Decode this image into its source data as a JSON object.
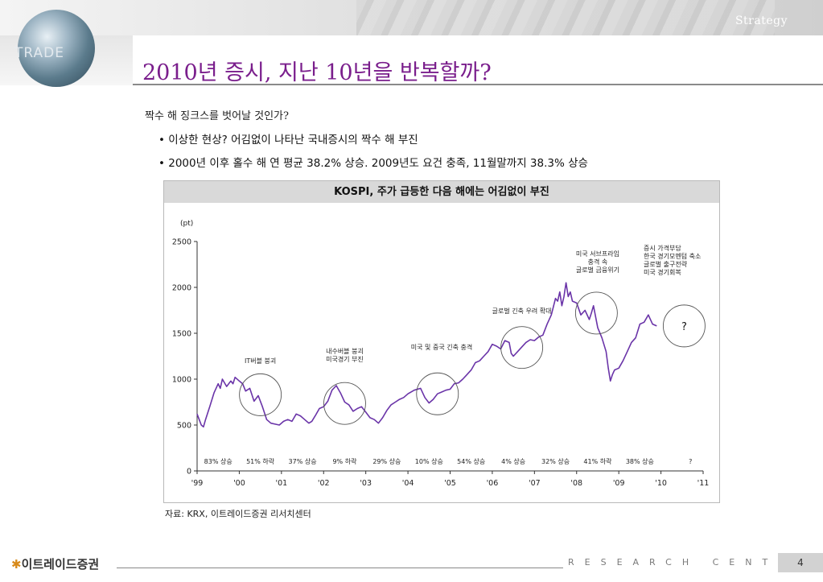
{
  "header": {
    "section": "Strategy",
    "logo_text": "TRADE"
  },
  "slide": {
    "title": "2010년 증시, 지난 10년을 반복할까?",
    "subtitle": "짝수 해 징크스를 벗어날 것인가?",
    "bullets": [
      "• 이상한 현상? 어김없이 나타난 국내증시의 짝수 해 부진",
      "• 2000년 이후 홀수 해 연 평균 38.2% 상승. 2009년도 요건 충족, 11월말까지 38.3% 상승"
    ],
    "source": "자료: KRX, 이트레이드증권 리서치센터"
  },
  "footer": {
    "logo": "이트레이드증권",
    "research": "RESEARCH CENTER",
    "page": "4"
  },
  "colors": {
    "title": "#7a1e8c",
    "line": "#6a34a8",
    "header_bar": "#d9d9d9"
  },
  "chart_data": {
    "type": "line",
    "title": "KOSPI, 주가 급등한 다음 해에는 어김없이 부진",
    "ylabel": "(pt)",
    "ylim": [
      0,
      2500
    ],
    "yticks": [
      0,
      500,
      1000,
      1500,
      2000,
      2500
    ],
    "xlim": [
      1999,
      2011
    ],
    "xticks": [
      {
        "value": 1999,
        "label": "'99"
      },
      {
        "value": 2000,
        "label": "'00"
      },
      {
        "value": 2001,
        "label": "'01"
      },
      {
        "value": 2002,
        "label": "'02"
      },
      {
        "value": 2003,
        "label": "'03"
      },
      {
        "value": 2004,
        "label": "'04"
      },
      {
        "value": 2005,
        "label": "'05"
      },
      {
        "value": 2006,
        "label": "'06"
      },
      {
        "value": 2007,
        "label": "'07"
      },
      {
        "value": 2008,
        "label": "'08"
      },
      {
        "value": 2009,
        "label": "'09"
      },
      {
        "value": 2010,
        "label": "'10"
      },
      {
        "value": 2011,
        "label": "'11"
      }
    ],
    "series": [
      {
        "x": [
          1999.0,
          1999.05,
          1999.1,
          1999.15,
          1999.2,
          1999.3,
          1999.4,
          1999.5,
          1999.55,
          1999.6,
          1999.7,
          1999.8,
          1999.85,
          1999.9,
          2000.0,
          2000.08,
          2000.15,
          2000.25,
          2000.35,
          2000.45,
          2000.55,
          2000.65,
          2000.75,
          2000.85,
          2000.95,
          2001.05,
          2001.15,
          2001.25,
          2001.35,
          2001.45,
          2001.55,
          2001.65,
          2001.72,
          2001.8,
          2001.9,
          2002.0,
          2002.1,
          2002.2,
          2002.3,
          2002.4,
          2002.5,
          2002.6,
          2002.7,
          2002.8,
          2002.9,
          2003.0,
          2003.1,
          2003.2,
          2003.3,
          2003.4,
          2003.5,
          2003.6,
          2003.7,
          2003.8,
          2003.9,
          2004.0,
          2004.15,
          2004.3,
          2004.4,
          2004.5,
          2004.6,
          2004.7,
          2004.8,
          2004.9,
          2005.0,
          2005.1,
          2005.2,
          2005.3,
          2005.4,
          2005.5,
          2005.6,
          2005.7,
          2005.8,
          2005.9,
          2006.0,
          2006.1,
          2006.2,
          2006.3,
          2006.4,
          2006.45,
          2006.5,
          2006.6,
          2006.7,
          2006.8,
          2006.9,
          2007.0,
          2007.1,
          2007.2,
          2007.3,
          2007.4,
          2007.5,
          2007.55,
          2007.6,
          2007.65,
          2007.7,
          2007.75,
          2007.8,
          2007.85,
          2007.9,
          2008.0,
          2008.1,
          2008.2,
          2008.3,
          2008.35,
          2008.4,
          2008.5,
          2008.6,
          2008.7,
          2008.75,
          2008.8,
          2008.85,
          2008.9,
          2009.0,
          2009.1,
          2009.2,
          2009.3,
          2009.4,
          2009.5,
          2009.6,
          2009.7,
          2009.75,
          2009.8,
          2009.9
        ],
        "y": [
          620,
          560,
          500,
          480,
          560,
          700,
          850,
          950,
          900,
          1000,
          920,
          980,
          950,
          1020,
          980,
          950,
          870,
          900,
          760,
          820,
          700,
          560,
          520,
          510,
          500,
          540,
          560,
          540,
          620,
          600,
          560,
          520,
          540,
          600,
          680,
          700,
          760,
          880,
          930,
          850,
          750,
          720,
          650,
          680,
          700,
          640,
          580,
          560,
          520,
          580,
          660,
          720,
          750,
          780,
          800,
          840,
          880,
          900,
          800,
          740,
          780,
          840,
          860,
          880,
          890,
          950,
          960,
          1000,
          1050,
          1100,
          1180,
          1200,
          1250,
          1300,
          1380,
          1360,
          1330,
          1420,
          1400,
          1280,
          1250,
          1300,
          1350,
          1400,
          1430,
          1420,
          1460,
          1480,
          1600,
          1700,
          1880,
          1850,
          1950,
          1800,
          1900,
          2050,
          1900,
          1950,
          1850,
          1830,
          1700,
          1750,
          1650,
          1720,
          1800,
          1560,
          1450,
          1300,
          1120,
          980,
          1050,
          1100,
          1120,
          1200,
          1300,
          1400,
          1450,
          1600,
          1620,
          1700,
          1650,
          1600,
          1580
        ]
      }
    ],
    "annotations": [
      {
        "x": 2000.5,
        "label": "IT버블 붕괴",
        "lines": [
          "IT버블 붕괴"
        ]
      },
      {
        "x": 2002.5,
        "label": "내수버블 붕괴 미국경기 부진",
        "lines": [
          "내수버블 붕괴",
          "미국경기 부진"
        ]
      },
      {
        "x": 2004.8,
        "label": "미국 및 중국 긴축 충격",
        "lines": [
          "미국 및 중국 긴축 충격"
        ]
      },
      {
        "x": 2006.7,
        "label": "글로벌 긴축 우려 확대",
        "lines": [
          "글로벌 긴축 우려  확대"
        ]
      },
      {
        "x": 2008.5,
        "label": "미국 서브프라임 충격 속 글로벌 금융위기",
        "lines": [
          "미국 서브프라임",
          "충격 속",
          "글로벌 금융위기"
        ]
      },
      {
        "x": 2009.75,
        "label": "증시 가격부담 한국 경기모멘텀 축소 글로벌 출구전략 미국 경기회복",
        "lines": [
          "증시 가격부담",
          "한국 경기모멘텀 축소",
          "글로벌 출구전략",
          "미국 경기회복"
        ]
      }
    ],
    "highlight_circles": [
      {
        "x": 2000.5,
        "y": 830
      },
      {
        "x": 2002.5,
        "y": 735
      },
      {
        "x": 2004.7,
        "y": 840
      },
      {
        "x": 2006.7,
        "y": 1345
      },
      {
        "x": 2008.47,
        "y": 1720
      },
      {
        "x": 2010.55,
        "y": 1580,
        "label": "?"
      }
    ],
    "yearly_changes": [
      {
        "x": 1999.5,
        "label": "83% 상승"
      },
      {
        "x": 2000.5,
        "label": "51% 하락"
      },
      {
        "x": 2001.5,
        "label": "37% 상승"
      },
      {
        "x": 2002.5,
        "label": "9% 하락"
      },
      {
        "x": 2003.5,
        "label": "29% 상승"
      },
      {
        "x": 2004.5,
        "label": "10% 상승"
      },
      {
        "x": 2005.5,
        "label": "54% 상승"
      },
      {
        "x": 2006.5,
        "label": "4% 상승"
      },
      {
        "x": 2007.5,
        "label": "32% 상승"
      },
      {
        "x": 2008.5,
        "label": "41% 하락"
      },
      {
        "x": 2009.5,
        "label": "38% 상승"
      },
      {
        "x": 2010.7,
        "label": "?"
      }
    ]
  }
}
